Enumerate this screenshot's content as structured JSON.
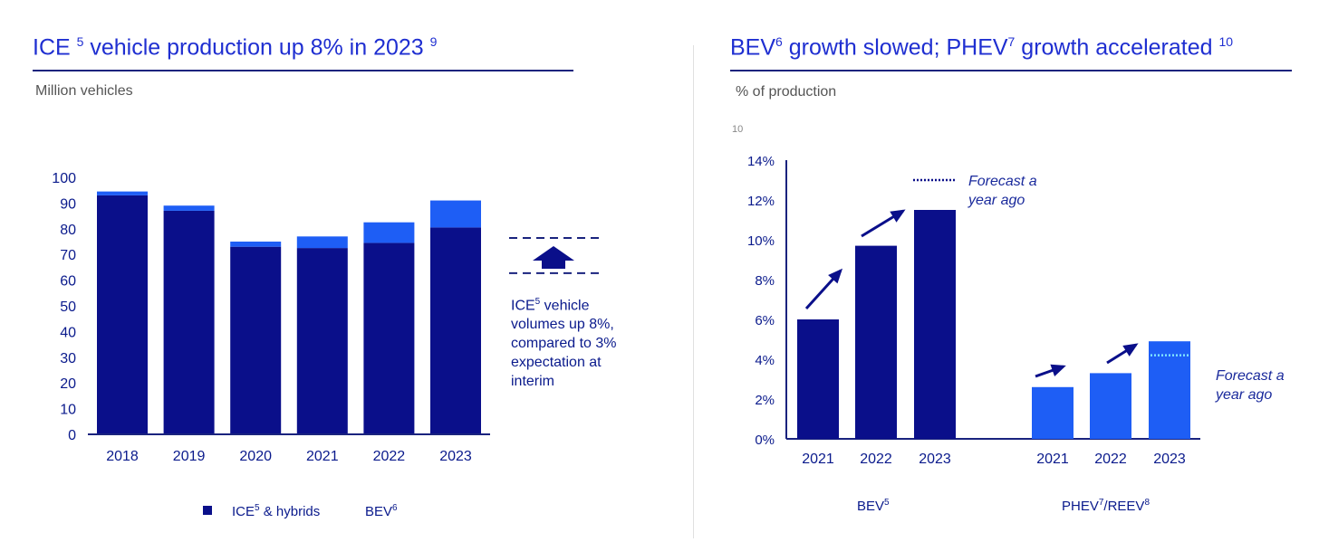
{
  "colors": {
    "ice": "#0a0f8a",
    "bev_top": "#1e5ef5",
    "bev": "#0a0f8a",
    "phev": "#1e5ef5",
    "axis": "#1a237e",
    "forecast": "#0a0f8a",
    "forecast_light": "#7ee3ff"
  },
  "left": {
    "title_main": "ICE ",
    "title_sup1": "5",
    "title_rest": " vehicle production up 8% in 2023 ",
    "title_sup2": "9",
    "unit": "Million vehicles",
    "annotation_a": "ICE",
    "annotation_sup": "5",
    "annotation_b": " vehicle volumes up 8%, compared to 3% expectation at interim",
    "legend_ice_a": "ICE",
    "legend_ice_sup": "5",
    "legend_ice_b": " & hybrids",
    "legend_bev_a": "BEV",
    "legend_bev_sup": "6"
  },
  "right": {
    "title_a": "BEV",
    "title_sup1": "6",
    "title_b": " growth slowed; PHEV",
    "title_sup2": "7",
    "title_c": " growth accelerated ",
    "title_sup3": "10",
    "unit": "% of production",
    "small_ref": "10",
    "forecast_label_1": "Forecast a year ago",
    "forecast_label_2": "Forecast a year ago",
    "group_bev_a": "BEV",
    "group_bev_sup": "5",
    "group_phev_a": "PHEV",
    "group_phev_sup1": "7",
    "group_phev_b": "/REEV",
    "group_phev_sup2": "8"
  },
  "chart_data": [
    {
      "type": "bar",
      "stacked": true,
      "title": "ICE 5 vehicle production up 8% in 2023 9",
      "ylabel": "Million vehicles",
      "categories": [
        "2018",
        "2019",
        "2020",
        "2021",
        "2022",
        "2023"
      ],
      "ylim": [
        0,
        100
      ],
      "yticks": [
        0,
        10,
        20,
        30,
        40,
        50,
        60,
        70,
        80,
        90,
        100
      ],
      "series": [
        {
          "name": "ICE5 & hybrids",
          "values": [
            93,
            87,
            73,
            72.5,
            74.5,
            80.5
          ]
        },
        {
          "name": "BEV6",
          "values": [
            1.5,
            2,
            2,
            4.5,
            8,
            10.5
          ]
        }
      ],
      "annotations": [
        {
          "text": "ICE5 vehicle volumes up 8%, compared to 3% expectation at interim",
          "from": 62,
          "to": 75
        }
      ]
    },
    {
      "type": "bar",
      "title": "BEV6 growth slowed; PHEV7 growth accelerated 10",
      "ylabel": "% of production",
      "ylim": [
        0,
        14
      ],
      "yticks": [
        "0%",
        "2%",
        "4%",
        "6%",
        "8%",
        "10%",
        "12%",
        "14%"
      ],
      "groups": [
        {
          "name": "BEV5",
          "categories": [
            "2021",
            "2022",
            "2023"
          ],
          "values": [
            6.0,
            9.7,
            11.5
          ],
          "forecast_2023": 13.0
        },
        {
          "name": "PHEV7/REEV8",
          "categories": [
            "2021",
            "2022",
            "2023"
          ],
          "values": [
            2.6,
            3.3,
            4.9
          ],
          "forecast_2023": 4.2
        }
      ]
    }
  ]
}
